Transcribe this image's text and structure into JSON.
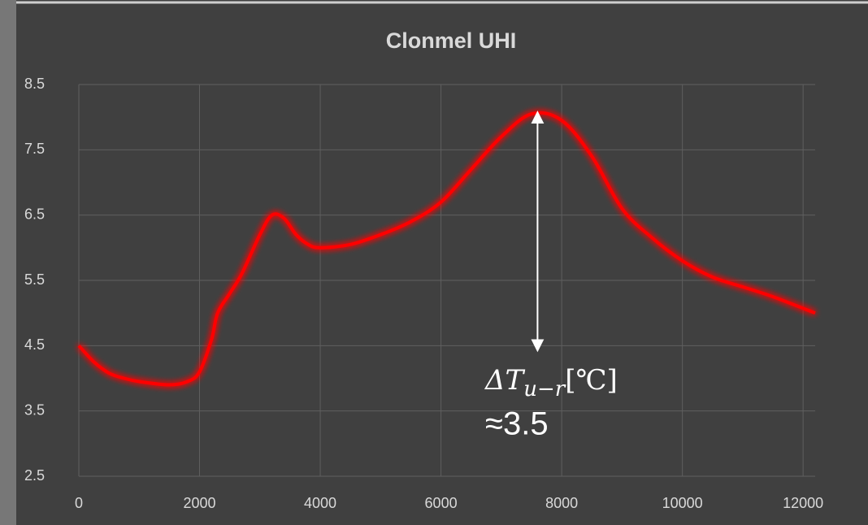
{
  "chart_data": {
    "type": "line",
    "title": "Clonmel UHI",
    "x": [
      0,
      250,
      500,
      750,
      1000,
      1500,
      1800,
      2000,
      2200,
      2300,
      2500,
      2700,
      3000,
      3200,
      3400,
      3600,
      3800,
      4000,
      4500,
      5000,
      5500,
      6000,
      6500,
      7000,
      7500,
      8000,
      8500,
      9000,
      9500,
      10000,
      10500,
      11000,
      11500,
      12200
    ],
    "values": [
      4.5,
      4.25,
      4.08,
      4.0,
      3.95,
      3.9,
      3.95,
      4.1,
      4.6,
      5.0,
      5.3,
      5.6,
      6.2,
      6.5,
      6.45,
      6.2,
      6.05,
      6.0,
      6.05,
      6.2,
      6.4,
      6.7,
      7.2,
      7.7,
      8.05,
      7.95,
      7.4,
      6.6,
      6.15,
      5.8,
      5.55,
      5.4,
      5.25,
      5.0
    ],
    "color": "#ff0000",
    "xlim": [
      0,
      12200
    ],
    "xticks": [
      0,
      2000,
      4000,
      6000,
      8000,
      10000,
      12000
    ],
    "ylim": [
      2.5,
      8.5
    ],
    "yticks": [
      2.5,
      3.5,
      4.5,
      5.5,
      6.5,
      7.5,
      8.5
    ],
    "grid": true,
    "annotation": {
      "symbol": "ΔT",
      "subscript": "u−r",
      "unit": "[℃]",
      "value_label": "≈3.5",
      "x": 7600,
      "y_top": 8.0,
      "y_bottom": 4.5
    }
  }
}
